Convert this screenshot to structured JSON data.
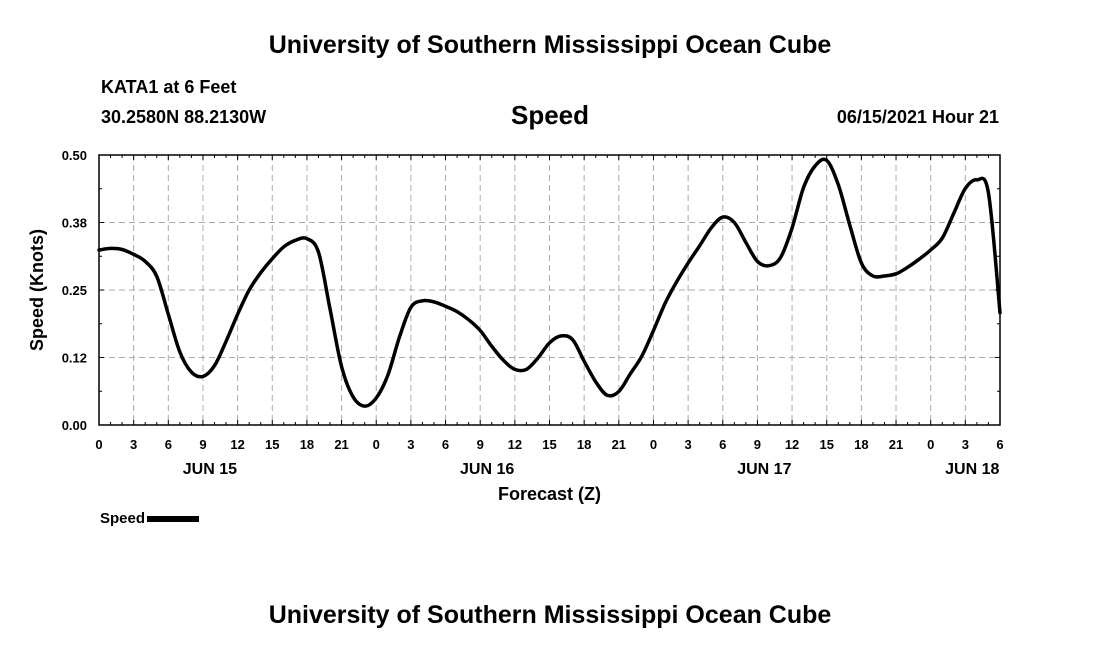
{
  "header": {
    "title": "University of Southern Mississippi Ocean Cube",
    "station": "KATA1 at 6 Feet",
    "coords": "30.2580N  88.2130W",
    "chart_name": "Speed",
    "datetime": "06/15/2021 Hour 21"
  },
  "footer": {
    "title": "University of Southern Mississippi Ocean Cube"
  },
  "legend": {
    "label": "Speed"
  },
  "chart_data": {
    "type": "line",
    "title": "Speed",
    "xlabel": "Forecast (Z)",
    "ylabel": "Speed (Knots)",
    "ylim": [
      0.0,
      0.5
    ],
    "xlim": [
      0,
      78
    ],
    "x_unit": "hours from 00Z Jun 15",
    "grid": true,
    "y_ticks": [
      0.0,
      0.125,
      0.25,
      0.375,
      0.5
    ],
    "y_tick_labels": [
      "0.00",
      "0.12",
      "0.25",
      "0.38",
      "0.50"
    ],
    "x_ticks": [
      0,
      3,
      6,
      9,
      12,
      15,
      18,
      21,
      24,
      27,
      30,
      33,
      36,
      39,
      42,
      45,
      48,
      51,
      54,
      57,
      60,
      63,
      66,
      69,
      72,
      75,
      78
    ],
    "x_tick_labels": [
      "0",
      "3",
      "6",
      "9",
      "12",
      "15",
      "18",
      "21",
      "0",
      "3",
      "6",
      "9",
      "12",
      "15",
      "18",
      "21",
      "0",
      "3",
      "6",
      "9",
      "12",
      "15",
      "18",
      "21",
      "0",
      "3",
      "6"
    ],
    "date_labels": [
      {
        "x": 9.6,
        "label": "JUN 15"
      },
      {
        "x": 33.6,
        "label": "JUN 16"
      },
      {
        "x": 57.6,
        "label": "JUN 17"
      },
      {
        "x": 75.6,
        "label": "JUN 18"
      }
    ],
    "series": [
      {
        "name": "Speed",
        "color": "#000000",
        "x": [
          0,
          1,
          2,
          3,
          4,
          5,
          6,
          7,
          8,
          9,
          10,
          11,
          12,
          13,
          14,
          15,
          16,
          17,
          18,
          19,
          20,
          21,
          22,
          23,
          24,
          25,
          26,
          27,
          28,
          29,
          30,
          31,
          32,
          33,
          34,
          35,
          36,
          37,
          38,
          39,
          40,
          41,
          42,
          43,
          44,
          45,
          46,
          47,
          48,
          49,
          50,
          51,
          52,
          53,
          54,
          55,
          56,
          57,
          58,
          59,
          60,
          61,
          62,
          63,
          64,
          65,
          66,
          67,
          68,
          69,
          70,
          71,
          72,
          73,
          74,
          75,
          76,
          77,
          78
        ],
        "y": [
          0.324,
          0.327,
          0.325,
          0.316,
          0.303,
          0.275,
          0.205,
          0.135,
          0.098,
          0.09,
          0.11,
          0.155,
          0.205,
          0.25,
          0.282,
          0.308,
          0.33,
          0.342,
          0.345,
          0.32,
          0.215,
          0.108,
          0.052,
          0.035,
          0.05,
          0.092,
          0.162,
          0.218,
          0.23,
          0.228,
          0.22,
          0.21,
          0.195,
          0.175,
          0.146,
          0.12,
          0.103,
          0.103,
          0.124,
          0.152,
          0.165,
          0.158,
          0.118,
          0.08,
          0.055,
          0.062,
          0.095,
          0.128,
          0.175,
          0.225,
          0.265,
          0.3,
          0.332,
          0.365,
          0.385,
          0.375,
          0.338,
          0.303,
          0.295,
          0.31,
          0.365,
          0.44,
          0.48,
          0.49,
          0.445,
          0.37,
          0.3,
          0.276,
          0.276,
          0.28,
          0.292,
          0.307,
          0.324,
          0.346,
          0.392,
          0.438,
          0.454,
          0.43,
          0.208
        ]
      }
    ]
  }
}
